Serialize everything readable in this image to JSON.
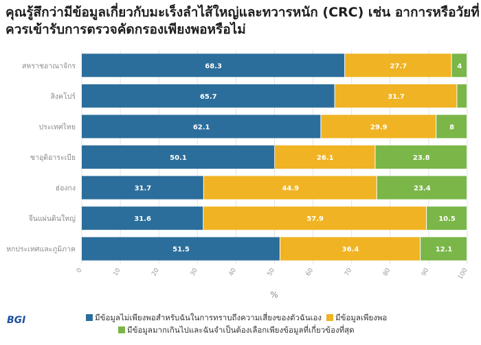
{
  "title": "คุณรู้สึกว่ามีข้อมูลเกี่ยวกับมะเร็งลำไส้ใหญ่และทวารหนัก (CRC) เช่น อาการหรือวัยที่ควรเข้ารับการตรวจคัดกรองเพียงพอหรือไม่",
  "logo_text": "BGI",
  "chart_data": {
    "type": "bar",
    "orientation": "horizontal",
    "stacked": true,
    "categories": [
      "สหราชอาณาจักร",
      "สิงคโปร์",
      "ประเทศไทย",
      "ซาอุดิอาระเบีย",
      "ฮ่องกง",
      "จีนแผ่นดินใหญ่",
      "หกประเทศและภูมิภาค"
    ],
    "series": [
      {
        "name": "มีข้อมูลไม่เพียงพอสำหรับฉันในการทราบถึงความเสี่ยงของตัวฉันเอง",
        "color": "#2c6e9b",
        "values": [
          68.3,
          65.7,
          62.1,
          50.1,
          31.7,
          31.6,
          51.5
        ]
      },
      {
        "name": "มีข้อมูลเพียงพอ",
        "color": "#f0b323",
        "values": [
          27.7,
          31.7,
          29.9,
          26.1,
          44.9,
          57.9,
          36.4
        ]
      },
      {
        "name": "มีข้อมูลมากเกินไปและฉันจำเป็นต้องเลือกเพียงข้อมูลที่เกี่ยวข้องที่สุด",
        "color": "#7ab648",
        "values": [
          4,
          2.6,
          8,
          23.8,
          23.4,
          10.5,
          12.1
        ]
      }
    ],
    "value_labels": [
      [
        "68.3",
        "27.7",
        "4"
      ],
      [
        "65.7",
        "31.7",
        ""
      ],
      [
        "62.1",
        "29.9",
        "8"
      ],
      [
        "50.1",
        "26.1",
        "23.8"
      ],
      [
        "31.7",
        "44.9",
        "23.4"
      ],
      [
        "31.6",
        "57.9",
        "10.5"
      ],
      [
        "51.5",
        "36.4",
        "12.1"
      ]
    ],
    "xlabel": "%",
    "xlim": [
      0,
      100
    ],
    "xticks": [
      0,
      10,
      20,
      30,
      40,
      50,
      60,
      70,
      80,
      90,
      100
    ],
    "grid": true,
    "legend_position": "bottom"
  }
}
